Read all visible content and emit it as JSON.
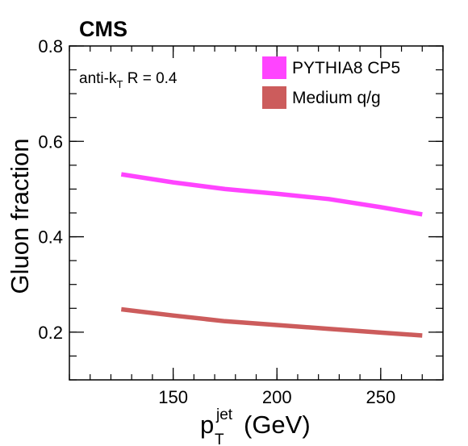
{
  "chart_data": {
    "type": "line",
    "experiment_label": "CMS",
    "annotation": {
      "main": "anti-k",
      "subscript": "T",
      "rest": " R = 0.4"
    },
    "xlabel": {
      "main": "p",
      "subscript": "T",
      "superscript": "jet",
      "units": "(GeV)"
    },
    "ylabel": "Gluon fraction",
    "xlim": [
      100,
      280
    ],
    "ylim": [
      0.1,
      0.8
    ],
    "x_ticks": [
      150,
      200,
      250
    ],
    "x_tick_labels": [
      "150",
      "200",
      "250"
    ],
    "y_ticks": [
      0.2,
      0.4,
      0.6,
      0.8
    ],
    "y_tick_labels": [
      "0.2",
      "0.4",
      "0.6",
      "0.8"
    ],
    "x_minor_step": 10,
    "y_minor_step": 0.05,
    "grid": false,
    "legend_position": "top-right",
    "series": [
      {
        "name": "PYTHIA8 CP5",
        "color": "#ff44ff",
        "x": [
          125,
          150,
          175,
          200,
          225,
          250,
          270
        ],
        "y": [
          0.531,
          0.514,
          0.5,
          0.49,
          0.479,
          0.462,
          0.447
        ]
      },
      {
        "name": "Medium q/g",
        "color": "#cc5c5c",
        "x": [
          125,
          150,
          175,
          200,
          225,
          250,
          270
        ],
        "y": [
          0.248,
          0.235,
          0.223,
          0.215,
          0.207,
          0.199,
          0.193
        ]
      }
    ]
  }
}
